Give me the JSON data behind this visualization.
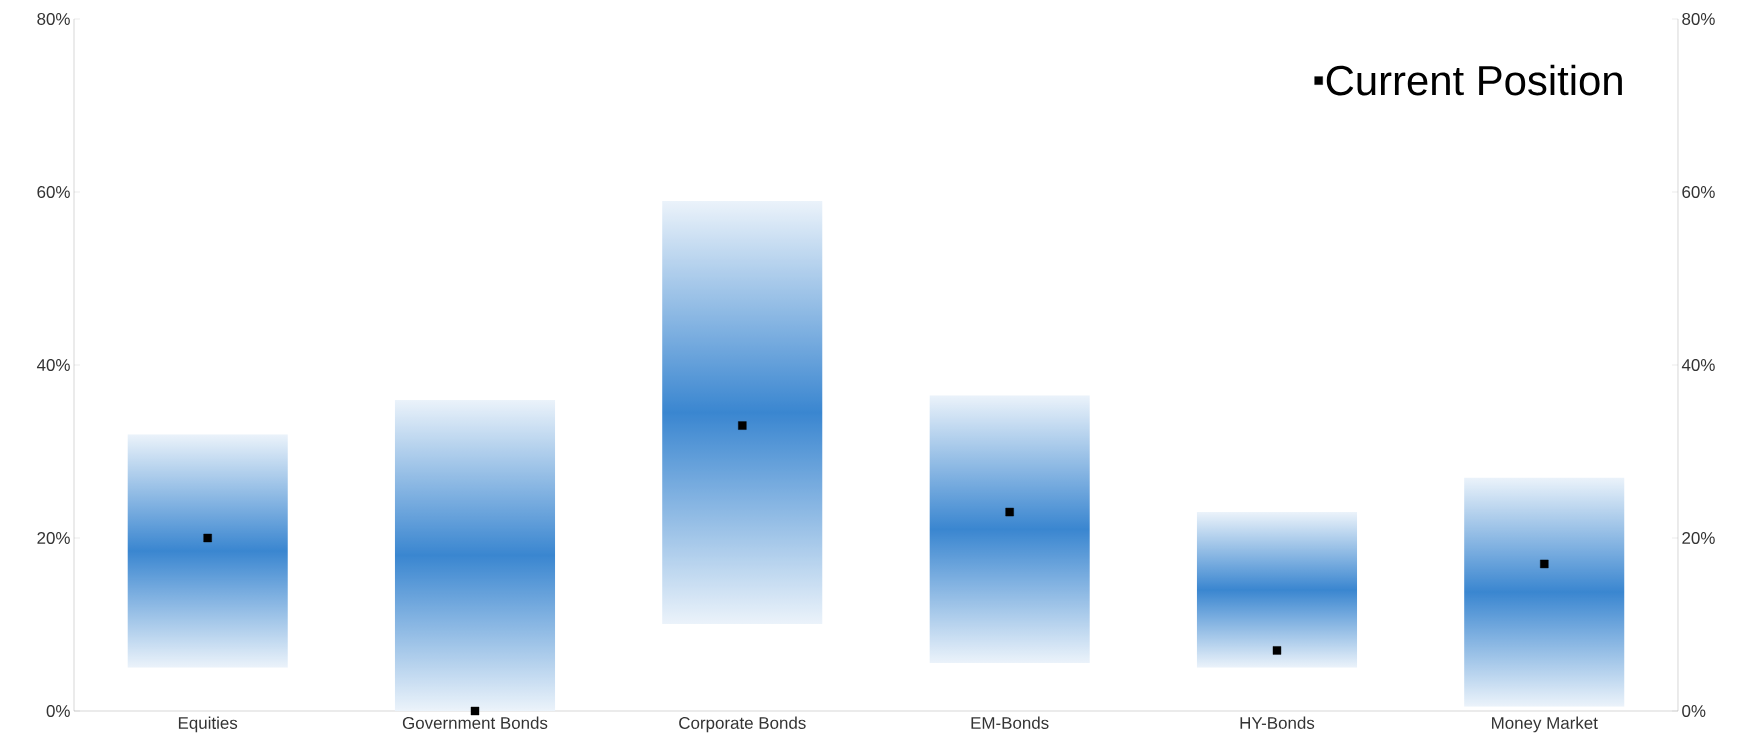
{
  "chart_data": {
    "type": "bar",
    "categories": [
      "Equities",
      "Government Bonds",
      "Corporate Bonds",
      "EM-Bonds",
      "HY-Bonds",
      "Money Market"
    ],
    "series": [
      {
        "color": "#3a86d0",
        "base": [
          5,
          0,
          10,
          5.5,
          5,
          0.5
        ],
        "values": [
          27,
          36,
          49,
          31,
          18,
          26.5
        ]
      },
      {
        "type": "scatter",
        "name": "Current Position",
        "color": "#000000",
        "marker": "square",
        "values": [
          20,
          0,
          33,
          23,
          7,
          17
        ]
      }
    ],
    "ylim": [
      0,
      80
    ],
    "yticks": [
      {
        "value": 0,
        "label": "0%"
      },
      {
        "value": 20,
        "label": "20%"
      },
      {
        "value": 40,
        "label": "40%"
      },
      {
        "value": 60,
        "label": "60%"
      },
      {
        "value": 80,
        "label": "80%"
      }
    ],
    "y2lim": [
      0,
      80
    ],
    "y2ticks": [
      {
        "value": 0,
        "label": "0%"
      },
      {
        "value": 20,
        "label": "20%"
      },
      {
        "value": 40,
        "label": "40%"
      },
      {
        "value": 60,
        "label": "60%"
      },
      {
        "value": 80,
        "label": "80%"
      }
    ],
    "grid": false,
    "legend": "top right"
  }
}
